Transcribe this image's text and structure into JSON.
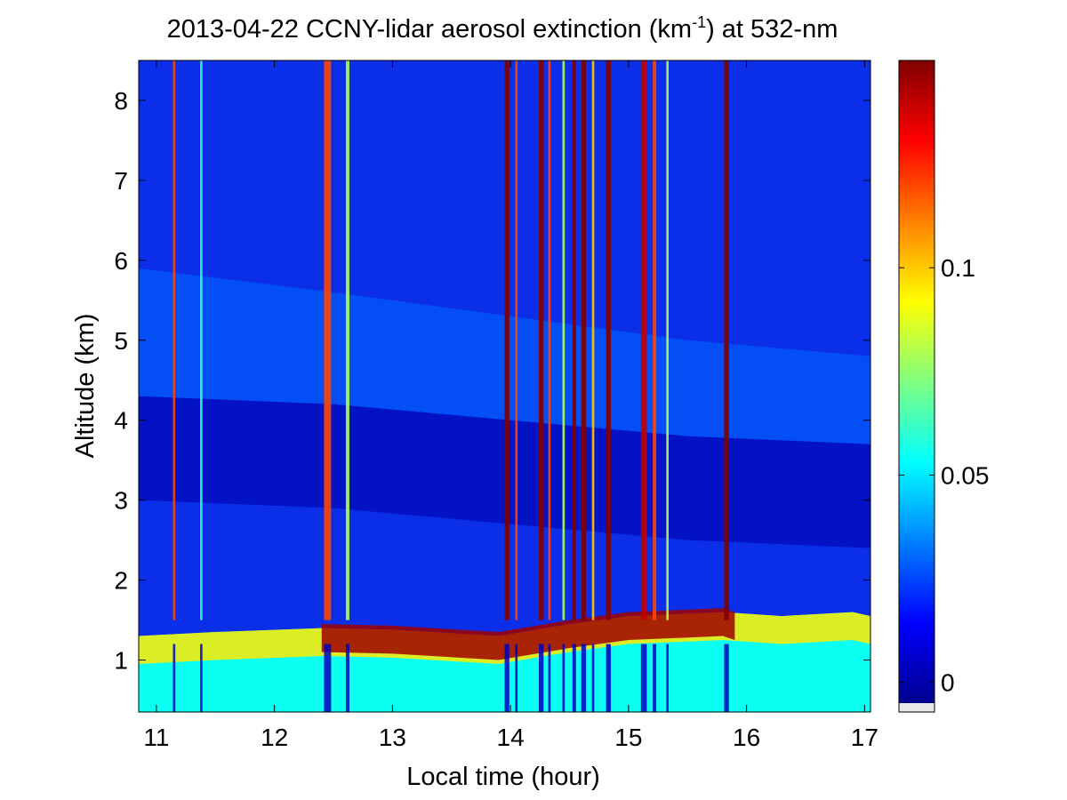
{
  "chart_data": {
    "type": "heatmap",
    "title": "2013-04-22 CCNY-lidar aerosol extinction (km",
    "title_superscript": "-1",
    "title_suffix": ") at 532-nm",
    "xlabel": "Local time (hour)",
    "ylabel": "Altitude (km)",
    "xlim": [
      10.85,
      17.05
    ],
    "ylim": [
      0.35,
      8.5
    ],
    "xticks": [
      11,
      12,
      13,
      14,
      15,
      16,
      17
    ],
    "xtick_labels": [
      "11",
      "12",
      "13",
      "14",
      "15",
      "16",
      "17"
    ],
    "yticks": [
      1,
      2,
      3,
      4,
      5,
      6,
      7,
      8
    ],
    "ytick_labels": [
      "1",
      "2",
      "3",
      "4",
      "5",
      "6",
      "7",
      "8"
    ],
    "colorbar": {
      "colormap": "jet",
      "clim": [
        -0.005,
        0.15
      ],
      "ticks": [
        0,
        0.05,
        0.1
      ],
      "tick_labels": [
        "0",
        "0.05",
        "0.1"
      ]
    },
    "colors": {
      "jet_dark_blue": "#00008f",
      "jet_blue": "#0000ff",
      "jet_cyan": "#00ffff",
      "jet_yellow": "#ffff00",
      "jet_red": "#ff0000",
      "jet_dark_red": "#800000"
    },
    "features": {
      "boundary_layer_top_km": [
        {
          "time": 10.85,
          "alt": 1.3
        },
        {
          "time": 11.5,
          "alt": 1.35
        },
        {
          "time": 12.4,
          "alt": 1.4
        },
        {
          "time": 13.0,
          "alt": 1.38
        },
        {
          "time": 13.9,
          "alt": 1.3
        },
        {
          "time": 14.5,
          "alt": 1.45
        },
        {
          "time": 15.0,
          "alt": 1.55
        },
        {
          "time": 15.8,
          "alt": 1.6
        },
        {
          "time": 16.3,
          "alt": 1.55
        },
        {
          "time": 16.9,
          "alt": 1.6
        },
        {
          "time": 17.05,
          "alt": 1.55
        }
      ],
      "residual_layer_km": [
        {
          "time": 10.85,
          "bottom": 4.3,
          "top": 5.9
        },
        {
          "time": 12.5,
          "bottom": 4.2,
          "top": 5.6
        },
        {
          "time": 14.0,
          "bottom": 4.0,
          "top": 5.3
        },
        {
          "time": 15.5,
          "bottom": 3.8,
          "top": 5.0
        },
        {
          "time": 17.05,
          "bottom": 3.7,
          "top": 4.8
        }
      ],
      "cloud_columns_hour": [
        {
          "time": 11.15,
          "width": 0.02,
          "value": 0.12
        },
        {
          "time": 11.38,
          "width": 0.02,
          "value": 0.06
        },
        {
          "time": 12.45,
          "width": 0.06,
          "value": 0.12
        },
        {
          "time": 12.62,
          "width": 0.03,
          "value": 0.08
        },
        {
          "time": 13.97,
          "width": 0.04,
          "value": 0.15
        },
        {
          "time": 14.05,
          "width": 0.02,
          "value": 0.12
        },
        {
          "time": 14.26,
          "width": 0.04,
          "value": 0.15
        },
        {
          "time": 14.33,
          "width": 0.02,
          "value": 0.12
        },
        {
          "time": 14.45,
          "width": 0.02,
          "value": 0.08
        },
        {
          "time": 14.54,
          "width": 0.03,
          "value": 0.15
        },
        {
          "time": 14.62,
          "width": 0.04,
          "value": 0.15
        },
        {
          "time": 14.7,
          "width": 0.02,
          "value": 0.1
        },
        {
          "time": 14.83,
          "width": 0.04,
          "value": 0.15
        },
        {
          "time": 15.13,
          "width": 0.05,
          "value": 0.14
        },
        {
          "time": 15.22,
          "width": 0.03,
          "value": 0.12
        },
        {
          "time": 15.33,
          "width": 0.02,
          "value": 0.08
        },
        {
          "time": 15.83,
          "width": 0.04,
          "value": 0.15
        }
      ]
    }
  }
}
